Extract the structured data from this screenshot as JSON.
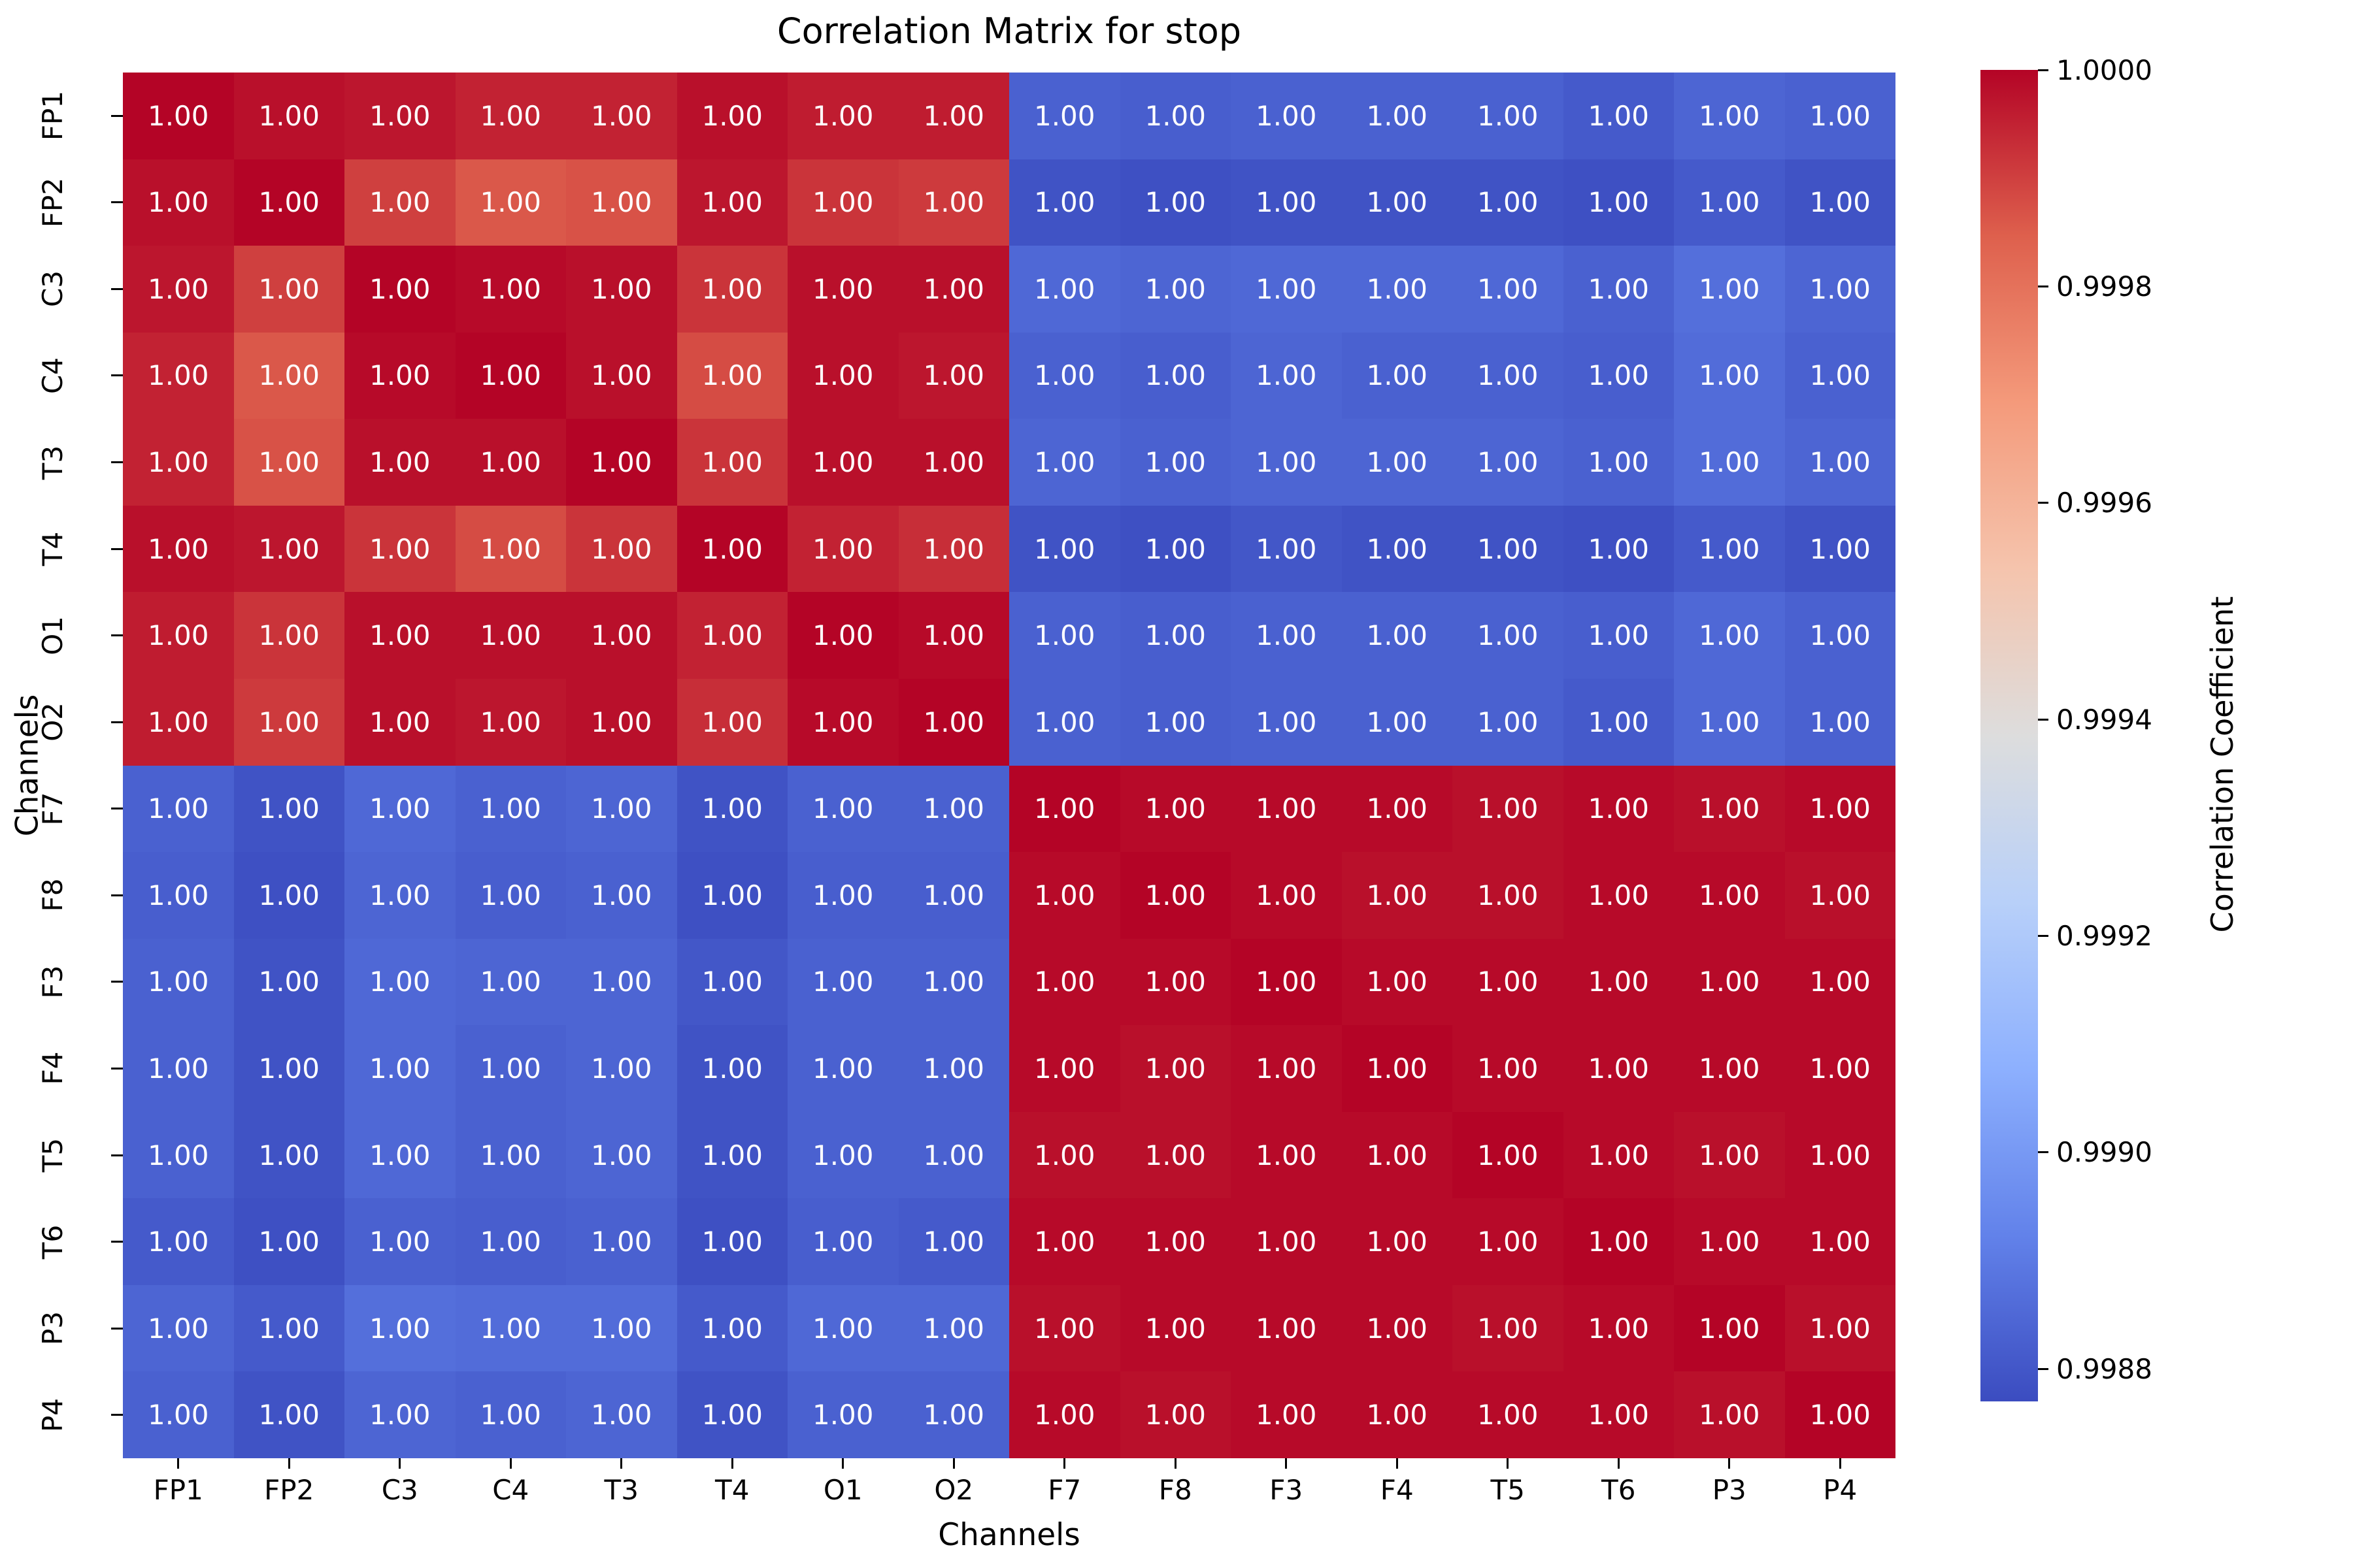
{
  "title": "Correlation Matrix for stop",
  "xlabel": "Channels",
  "ylabel": "Channels",
  "colorbar": {
    "label": "Correlation Coefficient",
    "tick_values": [
      1.0,
      0.9998,
      0.9996,
      0.9994,
      0.9992,
      0.999,
      0.9988
    ],
    "tick_decimals": 4
  },
  "chart_data": {
    "type": "heatmap",
    "title": "Correlation Matrix for stop",
    "xlabel": "Channels",
    "ylabel": "Channels",
    "categories": [
      "FP1",
      "FP2",
      "C3",
      "C4",
      "T3",
      "T4",
      "O1",
      "O2",
      "F7",
      "F8",
      "F3",
      "F4",
      "T5",
      "T6",
      "P3",
      "P4"
    ],
    "vmin": 0.99877,
    "vmax": 1.0,
    "annot_decimals": 2,
    "annot_color": "#ffffff",
    "colormap": "coolwarm",
    "colormap_anchors": [
      "#3B4CC0",
      "#6282EA",
      "#8DB0FE",
      "#B8D0F9",
      "#DDDDDD",
      "#F5C4AD",
      "#F49A7B",
      "#DE604D",
      "#B40426"
    ],
    "matrix": [
      [
        1.0,
        0.99998,
        0.99997,
        0.99995,
        0.99995,
        0.99998,
        0.99996,
        0.99996,
        0.99883,
        0.99882,
        0.99883,
        0.99883,
        0.99883,
        0.99881,
        0.99884,
        0.99883
      ],
      [
        0.99998,
        1.0,
        0.9999,
        0.99986,
        0.99987,
        0.99997,
        0.99992,
        0.99991,
        0.99879,
        0.99878,
        0.99879,
        0.99879,
        0.99879,
        0.99878,
        0.99881,
        0.99879
      ],
      [
        0.99997,
        0.9999,
        1.0,
        0.99999,
        0.99998,
        0.99992,
        0.99998,
        0.99998,
        0.99885,
        0.99884,
        0.99885,
        0.99885,
        0.99885,
        0.99883,
        0.99887,
        0.99884
      ],
      [
        0.99995,
        0.99986,
        0.99999,
        1.0,
        0.99998,
        0.99988,
        0.99998,
        0.99997,
        0.99883,
        0.99882,
        0.99884,
        0.99883,
        0.99883,
        0.99882,
        0.99886,
        0.99883
      ],
      [
        0.99995,
        0.99987,
        0.99998,
        0.99998,
        1.0,
        0.99992,
        0.99998,
        0.99998,
        0.99884,
        0.99883,
        0.99884,
        0.99884,
        0.99884,
        0.99883,
        0.99886,
        0.99884
      ],
      [
        0.99998,
        0.99997,
        0.99992,
        0.99988,
        0.99992,
        1.0,
        0.99995,
        0.99993,
        0.99879,
        0.99878,
        0.9988,
        0.99879,
        0.99879,
        0.99878,
        0.99881,
        0.99879
      ],
      [
        0.99996,
        0.99992,
        0.99998,
        0.99998,
        0.99998,
        0.99995,
        1.0,
        0.99999,
        0.99883,
        0.99882,
        0.99883,
        0.99883,
        0.99883,
        0.99882,
        0.99885,
        0.99883
      ],
      [
        0.99996,
        0.99991,
        0.99998,
        0.99997,
        0.99998,
        0.99993,
        0.99999,
        1.0,
        0.99883,
        0.99882,
        0.99883,
        0.99883,
        0.99883,
        0.99881,
        0.99885,
        0.99883
      ],
      [
        0.99883,
        0.99879,
        0.99885,
        0.99883,
        0.99884,
        0.99879,
        0.99883,
        0.99883,
        1.0,
        0.99999,
        0.99999,
        0.99999,
        0.99998,
        0.99999,
        0.99998,
        0.99999
      ],
      [
        0.99882,
        0.99878,
        0.99884,
        0.99882,
        0.99883,
        0.99878,
        0.99882,
        0.99882,
        0.99999,
        1.0,
        0.99999,
        0.99998,
        0.99998,
        0.99999,
        0.99999,
        0.99998
      ],
      [
        0.99883,
        0.99879,
        0.99885,
        0.99884,
        0.99884,
        0.9988,
        0.99883,
        0.99883,
        0.99999,
        0.99999,
        1.0,
        0.99999,
        0.99999,
        0.99999,
        0.99999,
        0.99999
      ],
      [
        0.99883,
        0.99879,
        0.99885,
        0.99883,
        0.99884,
        0.99879,
        0.99883,
        0.99883,
        0.99999,
        0.99998,
        0.99999,
        1.0,
        0.99999,
        0.99999,
        0.99999,
        0.99999
      ],
      [
        0.99883,
        0.99879,
        0.99885,
        0.99883,
        0.99884,
        0.99879,
        0.99883,
        0.99883,
        0.99998,
        0.99998,
        0.99999,
        0.99999,
        1.0,
        0.99999,
        0.99998,
        0.99999
      ],
      [
        0.99881,
        0.99878,
        0.99883,
        0.99882,
        0.99883,
        0.99878,
        0.99882,
        0.99881,
        0.99999,
        0.99999,
        0.99999,
        0.99999,
        0.99999,
        1.0,
        0.99999,
        0.99999
      ],
      [
        0.99884,
        0.99881,
        0.99887,
        0.99886,
        0.99886,
        0.99881,
        0.99885,
        0.99885,
        0.99998,
        0.99999,
        0.99999,
        0.99999,
        0.99998,
        0.99999,
        1.0,
        0.99998
      ],
      [
        0.99883,
        0.99879,
        0.99884,
        0.99883,
        0.99884,
        0.99879,
        0.99883,
        0.99883,
        0.99999,
        0.99998,
        0.99999,
        0.99999,
        0.99999,
        0.99999,
        0.99998,
        1.0
      ]
    ]
  }
}
